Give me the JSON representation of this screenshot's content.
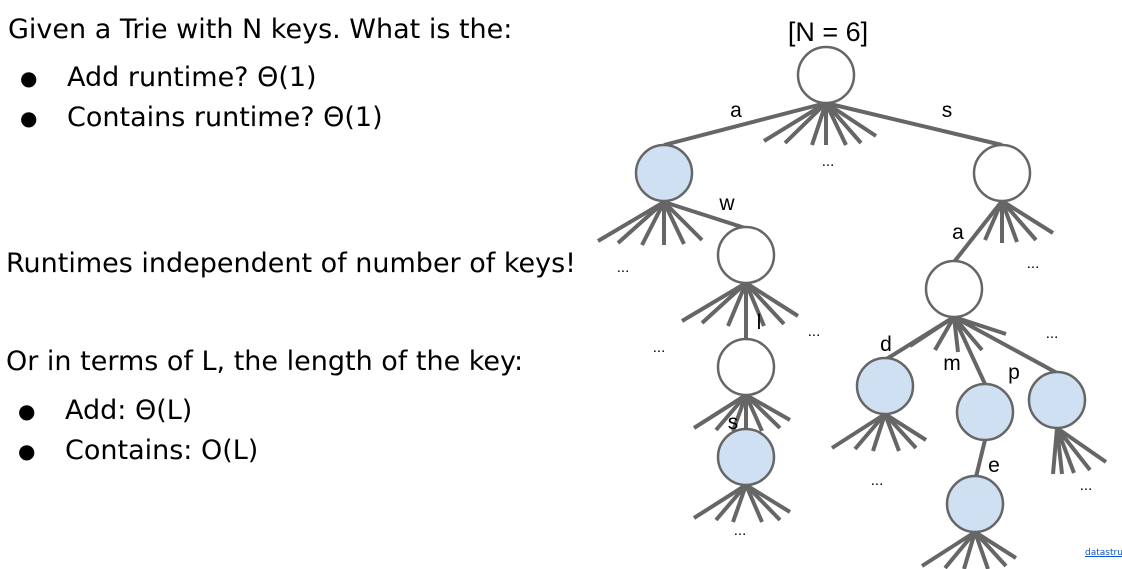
{
  "question": {
    "heading": "Given a Trie with N keys. What is the:",
    "bullets": [
      "Add runtime? Θ(1)",
      "Contains runtime? Θ(1)"
    ]
  },
  "note": "Runtimes independent of number of keys!",
  "length_section": {
    "heading": "Or in terms of L, the length of the key:",
    "bullets": [
      "Add: Θ(L)",
      "Contains: O(L)"
    ]
  },
  "bullet_glyph": "●",
  "footer_link": "datastruc",
  "trie": {
    "title": "[N = 6]",
    "colors": {
      "key_node": "#cfe0f3",
      "plain_node": "#ffffff",
      "edge": "#666666"
    },
    "edge_labels": [
      "a",
      "s",
      "w",
      "a",
      "l",
      "d",
      "m",
      "p",
      "s",
      "e"
    ],
    "ellipsis": "...",
    "nodes": [
      {
        "id": "root",
        "is_key": false
      },
      {
        "id": "a",
        "is_key": true
      },
      {
        "id": "s",
        "is_key": false
      },
      {
        "id": "aw",
        "is_key": false
      },
      {
        "id": "sa",
        "is_key": false
      },
      {
        "id": "awl",
        "is_key": false
      },
      {
        "id": "awls",
        "is_key": true
      },
      {
        "id": "sad",
        "is_key": true
      },
      {
        "id": "sam",
        "is_key": true
      },
      {
        "id": "sap",
        "is_key": true
      },
      {
        "id": "same",
        "is_key": true
      }
    ]
  }
}
